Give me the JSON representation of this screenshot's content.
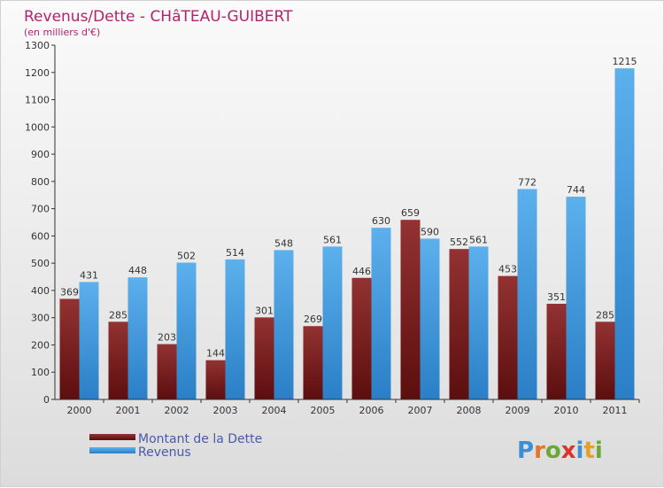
{
  "chart_data": {
    "type": "bar",
    "title": "Revenus/Dette - CHâTEAU-GUIBERT",
    "subtitle": "(en milliers d'€)",
    "categories": [
      "2000",
      "2001",
      "2002",
      "2003",
      "2004",
      "2005",
      "2006",
      "2007",
      "2008",
      "2009",
      "2010",
      "2011"
    ],
    "series": [
      {
        "name": "Montant de la Dette",
        "color": "#7a1a1a",
        "values": [
          369,
          285,
          203,
          144,
          301,
          269,
          446,
          659,
          552,
          453,
          351,
          285
        ]
      },
      {
        "name": "Revenus",
        "color": "#3c96dc",
        "values": [
          431,
          448,
          502,
          514,
          548,
          561,
          630,
          590,
          561,
          772,
          744,
          1215
        ]
      }
    ],
    "ylim": [
      0,
      1300
    ],
    "yticks": [
      0,
      100,
      200,
      300,
      400,
      500,
      600,
      700,
      800,
      900,
      1000,
      1100,
      1200,
      1300
    ],
    "grid": false,
    "legend_position": "bottom-left"
  },
  "logo": {
    "letters": [
      "P",
      "r",
      "o",
      "x",
      "i",
      "t",
      "i"
    ],
    "colors": [
      "#3b8fd4",
      "#e3742a",
      "#6aa83a",
      "#d9342b",
      "#3b8fd4",
      "#e3a12a",
      "#6aa83a"
    ]
  }
}
